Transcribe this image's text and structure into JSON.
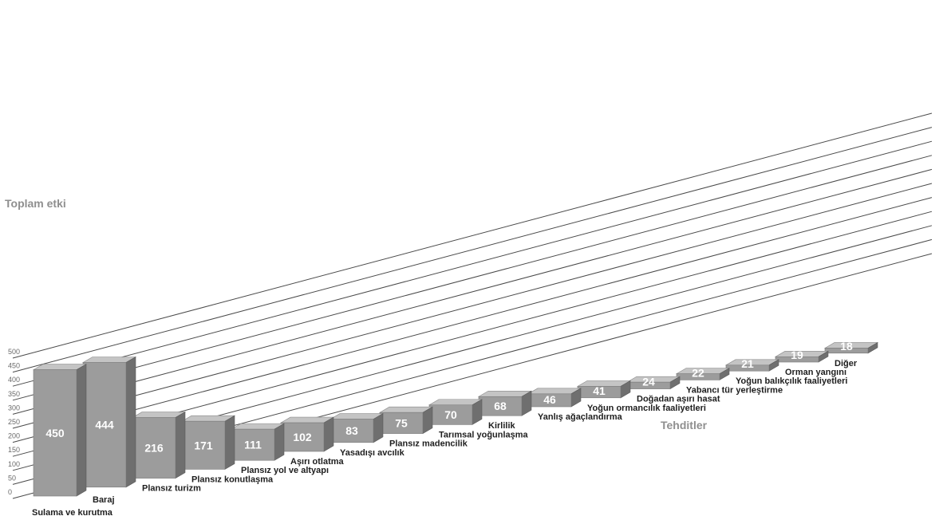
{
  "chart_data": {
    "type": "bar",
    "ylabel": "Toplam etki",
    "xlabel": "Tehditler",
    "ylim": [
      0,
      500
    ],
    "yticks": [
      0,
      50,
      100,
      150,
      200,
      250,
      300,
      350,
      400,
      450,
      500
    ],
    "grid": true,
    "categories": [
      "Sulama ve kurutma",
      "Baraj",
      "Plansız turizm",
      "Plansız konutlaşma",
      "Plansız yol ve altyapı",
      "Aşırı otlatma",
      "Yasadışı avcılık",
      "Plansız madencilik",
      "Tarımsal yoğunlaşma",
      "Kirlilik",
      "Yanlış ağaçlandırma",
      "Yoğun ormancılık faaliyetleri",
      "Doğadan aşırı hasat",
      "Yabancı tür yerleştirme",
      "Yoğun balıkçılık faaliyetleri",
      "Orman yangını",
      "Diğer"
    ],
    "values": [
      450,
      444,
      216,
      171,
      111,
      102,
      83,
      75,
      70,
      68,
      46,
      41,
      24,
      22,
      21,
      19,
      18
    ],
    "colors": {
      "front": "#9c9c9c",
      "top": "#c4c4c4",
      "side": "#6f6f6f",
      "grid": "#4a4a4a"
    }
  }
}
